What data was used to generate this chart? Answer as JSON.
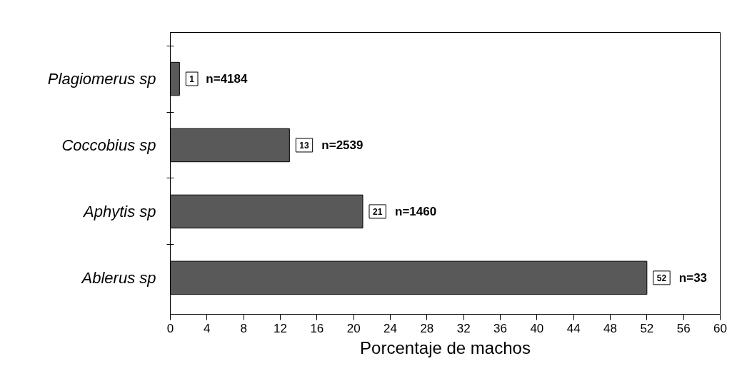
{
  "chart_data": {
    "type": "bar",
    "orientation": "horizontal",
    "categories": [
      "Plagiomerus sp",
      "Coccobius sp",
      "Aphytis sp",
      "Ablerus sp"
    ],
    "values": [
      1,
      13,
      21,
      52
    ],
    "color": "#595959",
    "data_labels": true,
    "xlabel": "Porcentaje de machos",
    "xlim": [
      0,
      60
    ],
    "xticks": [
      0,
      4,
      8,
      12,
      16,
      20,
      24,
      28,
      32,
      36,
      40,
      44,
      48,
      52,
      56,
      60
    ],
    "annotations": [
      {
        "text": "n=4184",
        "x": 1,
        "y": "Plagiomerus sp"
      },
      {
        "text": "n=2539",
        "x": 13,
        "y": "Coccobius sp"
      },
      {
        "text": "n=1460",
        "x": 21,
        "y": "Aphytis sp"
      },
      {
        "text": "n=33",
        "x": 52,
        "y": "Ablerus sp"
      }
    ],
    "grid": false
  }
}
